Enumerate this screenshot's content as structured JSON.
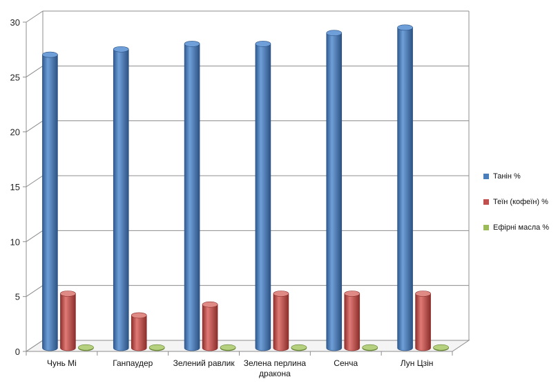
{
  "chart_data": {
    "type": "bar",
    "categories": [
      "Чунь Мі",
      "Ганпаудер",
      "Зелений равлик",
      "Зелена перлина\nдракона",
      "Сенча",
      "Лун Цзін"
    ],
    "series": [
      {
        "name": "Танін %",
        "values": [
          27,
          27.5,
          28,
          28,
          29,
          29.5
        ],
        "color": "#4a7ebb"
      },
      {
        "name": "Теїн (кофеїн)  %",
        "values": [
          5,
          3,
          4,
          5,
          5,
          5
        ],
        "color": "#c0504d"
      },
      {
        "name": "Ефірні масла %",
        "values": [
          0.05,
          0.05,
          0.05,
          0.05,
          0.05,
          0.05
        ],
        "color": "#9bbb59"
      }
    ],
    "ylim": [
      0,
      30
    ],
    "yticks": [
      "0",
      "5",
      "10",
      "15",
      "20",
      "25",
      "30"
    ],
    "grid": true,
    "legend_position": "right",
    "style": "3d-cylinder"
  }
}
